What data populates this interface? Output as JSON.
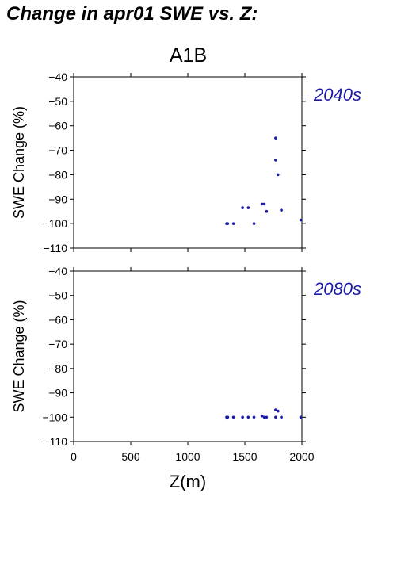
{
  "page_title": "Change in apr01 SWE vs. Z:",
  "scenario_label": "A1B",
  "chart_data": [
    {
      "type": "scatter",
      "period_label": "2040s",
      "ylabel": "SWE Change (%)",
      "xlabel": "",
      "xlim": [
        0,
        2000
      ],
      "ylim": [
        -110,
        -40
      ],
      "x_ticks": [
        0,
        500,
        1000,
        1500,
        2000
      ],
      "y_ticks": [
        -40,
        -50,
        -60,
        -70,
        -80,
        -90,
        -100,
        -110
      ],
      "show_x_tick_labels": false,
      "grid": false,
      "point_color": "#1a1aa6",
      "series": [
        {
          "x": [
            1340,
            1350,
            1400,
            1480,
            1530,
            1580,
            1650,
            1670,
            1690,
            1770,
            1770,
            1790,
            1820,
            1990
          ],
          "y": [
            -100,
            -100,
            -100,
            -93.5,
            -93.5,
            -100,
            -92,
            -92,
            -95,
            -65,
            -74,
            -80,
            -94.5,
            -98.5
          ]
        }
      ]
    },
    {
      "type": "scatter",
      "period_label": "2080s",
      "ylabel": "SWE Change (%)",
      "xlabel": "Z(m)",
      "xlim": [
        0,
        2000
      ],
      "ylim": [
        -110,
        -40
      ],
      "x_ticks": [
        0,
        500,
        1000,
        1500,
        2000
      ],
      "y_ticks": [
        -40,
        -50,
        -60,
        -70,
        -80,
        -90,
        -100,
        -110
      ],
      "show_x_tick_labels": true,
      "grid": false,
      "point_color": "#1a1aa6",
      "series": [
        {
          "x": [
            1340,
            1350,
            1400,
            1480,
            1530,
            1580,
            1650,
            1670,
            1690,
            1770,
            1770,
            1790,
            1820,
            1990
          ],
          "y": [
            -100,
            -100,
            -100,
            -100,
            -100,
            -100,
            -99.5,
            -100,
            -100,
            -97,
            -100,
            -97.5,
            -100,
            -100
          ]
        }
      ]
    }
  ]
}
